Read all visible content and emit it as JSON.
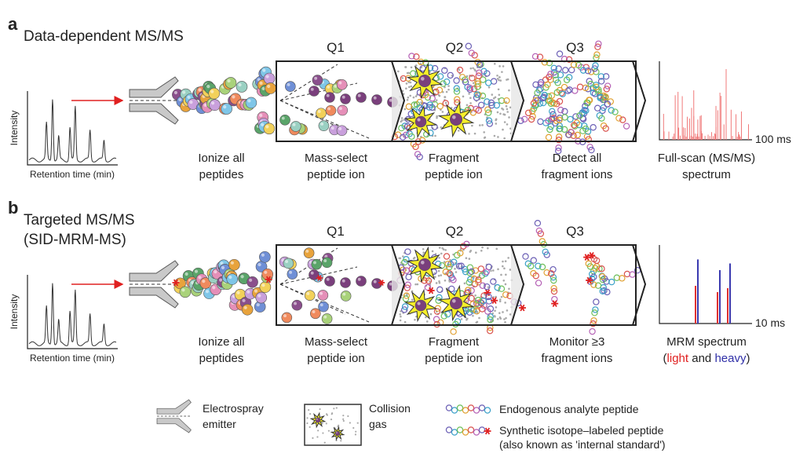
{
  "panel_a": {
    "label": "a",
    "title": [
      "Data-dependent MS/MS"
    ],
    "y_axis": "Intensity",
    "x_axis": "Retention time (min)",
    "quadrupoles": [
      "Q1",
      "Q2",
      "Q3"
    ],
    "scan_time": "100 ms",
    "steps": [
      [
        "Ionize all",
        "peptides"
      ],
      [
        "Mass-select",
        "peptide ion"
      ],
      [
        "Fragment",
        "peptide ion"
      ],
      [
        "Detect all",
        "fragment ions"
      ],
      [
        "Full-scan (MS/MS)",
        "spectrum"
      ]
    ]
  },
  "panel_b": {
    "label": "b",
    "title": [
      "Targeted MS/MS",
      "(SID-MRM-MS)"
    ],
    "y_axis": "Intensity",
    "x_axis": "Retention time (min)",
    "quadrupoles": [
      "Q1",
      "Q2",
      "Q3"
    ],
    "scan_time": "10 ms",
    "steps": [
      [
        "Ionize all",
        "peptides"
      ],
      [
        "Mass-select",
        "peptide ion"
      ],
      [
        "Fragment",
        "peptide ion"
      ],
      [
        "Monitor ≥3",
        "fragment ions"
      ],
      [
        "MRM spectrum"
      ]
    ],
    "spectrum_note": [
      "(",
      "light",
      " and ",
      "heavy",
      ")"
    ]
  },
  "legend": {
    "emitter": [
      "Electrospray",
      "emitter"
    ],
    "gas": [
      "Collision",
      "gas"
    ],
    "endogenous": "Endogenous analyte peptide",
    "synthetic": [
      "Synthetic isotope–labeled peptide",
      "(also known as 'internal standard')"
    ]
  }
}
